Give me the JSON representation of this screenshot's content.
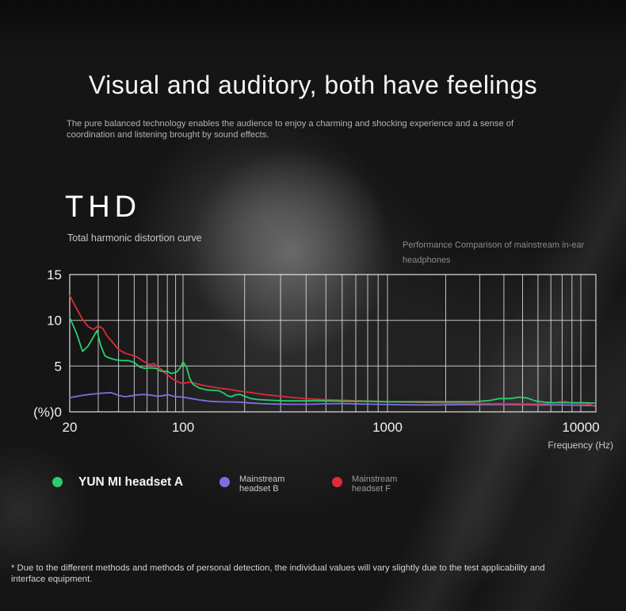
{
  "page": {
    "title": "Visual and auditory, both have feelings",
    "subtitle": "The pure balanced technology enables the audience to enjoy a charming and shocking experience and a sense of coordination and listening brought by sound effects.",
    "footnote": "* Due to the different methods and methods of personal detection, the individual values will vary slightly due to the test applicability and interface equipment."
  },
  "section": {
    "heading": "THD",
    "subheading": "Total harmonic distortion curve",
    "side_note": "Performance Comparison of mainstream in-ear headphones"
  },
  "chart_data": {
    "type": "line",
    "title": "THD",
    "subtitle": "Total harmonic distortion curve",
    "x_scale": "log",
    "x_domain": [
      20,
      12000
    ],
    "xlabel": "Frequency (Hz)",
    "y_unit": "%",
    "ylim": [
      0,
      15
    ],
    "grid": true,
    "grid_x": [
      20,
      30,
      40,
      50,
      60,
      70,
      80,
      90,
      100,
      200,
      300,
      400,
      500,
      600,
      700,
      800,
      900,
      1000,
      2000,
      3000,
      4000,
      5000,
      6000,
      7000,
      8000,
      9000,
      10000
    ],
    "grid_y": [
      0,
      5,
      10,
      15
    ],
    "x_ticks": [
      {
        "label": "20",
        "value": 20
      },
      {
        "label": "100",
        "value": 100
      },
      {
        "label": "1000",
        "value": 1000
      },
      {
        "label": "10000",
        "value": 10000
      }
    ],
    "y_ticks": [
      {
        "label": "15",
        "value": 15
      },
      {
        "label": "10",
        "value": 10
      },
      {
        "label": "5",
        "value": 5
      },
      {
        "label": "(%)0",
        "value": 0
      }
    ],
    "series": [
      {
        "name": "Mainstream headset B",
        "color": "#7d6fe2",
        "points": [
          [
            20,
            1.55
          ],
          [
            24,
            1.8
          ],
          [
            28,
            1.95
          ],
          [
            32,
            2.05
          ],
          [
            36,
            2.1
          ],
          [
            40,
            1.8
          ],
          [
            44,
            1.65
          ],
          [
            48,
            1.75
          ],
          [
            52,
            1.85
          ],
          [
            57,
            1.9
          ],
          [
            62,
            1.85
          ],
          [
            67,
            1.75
          ],
          [
            72,
            1.72
          ],
          [
            77,
            1.8
          ],
          [
            82,
            1.85
          ],
          [
            87,
            1.7
          ],
          [
            93,
            1.65
          ],
          [
            100,
            1.6
          ],
          [
            110,
            1.45
          ],
          [
            120,
            1.3
          ],
          [
            135,
            1.15
          ],
          [
            150,
            1.1
          ],
          [
            170,
            1.08
          ],
          [
            190,
            1.05
          ],
          [
            210,
            0.98
          ],
          [
            240,
            0.9
          ],
          [
            280,
            0.85
          ],
          [
            330,
            0.82
          ],
          [
            400,
            0.82
          ],
          [
            500,
            0.88
          ],
          [
            600,
            0.9
          ],
          [
            750,
            0.85
          ],
          [
            900,
            0.82
          ],
          [
            1100,
            0.78
          ],
          [
            1400,
            0.75
          ],
          [
            1800,
            0.75
          ],
          [
            2300,
            0.78
          ],
          [
            3000,
            0.8
          ],
          [
            4000,
            0.8
          ],
          [
            5000,
            0.78
          ],
          [
            6500,
            0.75
          ],
          [
            8000,
            0.75
          ],
          [
            10000,
            0.7
          ],
          [
            11800,
            0.68
          ]
        ]
      },
      {
        "name": "Mainstream headset F",
        "color": "#de2b35",
        "points": [
          [
            20,
            12.7
          ],
          [
            22,
            11.3
          ],
          [
            24,
            10.1
          ],
          [
            26,
            9.3
          ],
          [
            28,
            9.0
          ],
          [
            30,
            9.4
          ],
          [
            32,
            9.1
          ],
          [
            34,
            8.3
          ],
          [
            36,
            7.8
          ],
          [
            40,
            6.8
          ],
          [
            44,
            6.4
          ],
          [
            48,
            6.2
          ],
          [
            52,
            6.0
          ],
          [
            56,
            5.6
          ],
          [
            60,
            5.3
          ],
          [
            63,
            5.15
          ],
          [
            66,
            5.3
          ],
          [
            70,
            4.9
          ],
          [
            74,
            4.6
          ],
          [
            78,
            4.2
          ],
          [
            82,
            3.9
          ],
          [
            86,
            3.6
          ],
          [
            90,
            3.4
          ],
          [
            95,
            3.2
          ],
          [
            100,
            3.1
          ],
          [
            108,
            3.25
          ],
          [
            115,
            3.1
          ],
          [
            125,
            2.9
          ],
          [
            140,
            2.7
          ],
          [
            155,
            2.55
          ],
          [
            170,
            2.45
          ],
          [
            185,
            2.3
          ],
          [
            200,
            2.2
          ],
          [
            230,
            2.0
          ],
          [
            260,
            1.85
          ],
          [
            300,
            1.7
          ],
          [
            350,
            1.55
          ],
          [
            400,
            1.45
          ],
          [
            470,
            1.35
          ],
          [
            550,
            1.3
          ],
          [
            650,
            1.25
          ],
          [
            800,
            1.18
          ],
          [
            1000,
            1.1
          ],
          [
            1300,
            1.05
          ],
          [
            1700,
            1.0
          ],
          [
            2200,
            0.95
          ],
          [
            2800,
            0.92
          ],
          [
            3500,
            0.9
          ],
          [
            4500,
            0.88
          ],
          [
            5500,
            0.86
          ],
          [
            6500,
            0.88
          ],
          [
            7200,
            0.95
          ],
          [
            7800,
            1.1
          ],
          [
            8300,
            1.12
          ],
          [
            8800,
            1.0
          ],
          [
            9500,
            0.92
          ],
          [
            10500,
            0.9
          ],
          [
            11200,
            0.8
          ],
          [
            11800,
            0.6
          ]
        ]
      },
      {
        "name": "YUN MI headset A",
        "color": "#2bcd6e",
        "points": [
          [
            20,
            10.3
          ],
          [
            22,
            8.6
          ],
          [
            24,
            6.6
          ],
          [
            26,
            7.2
          ],
          [
            28,
            8.2
          ],
          [
            29.5,
            8.9
          ],
          [
            31,
            7.3
          ],
          [
            33,
            6.1
          ],
          [
            35,
            5.9
          ],
          [
            38,
            5.7
          ],
          [
            42,
            5.6
          ],
          [
            46,
            5.6
          ],
          [
            50,
            5.4
          ],
          [
            54,
            4.9
          ],
          [
            58,
            4.75
          ],
          [
            63,
            4.8
          ],
          [
            68,
            4.75
          ],
          [
            72,
            4.5
          ],
          [
            76,
            4.4
          ],
          [
            80,
            4.45
          ],
          [
            84,
            4.2
          ],
          [
            88,
            4.25
          ],
          [
            92,
            4.4
          ],
          [
            96,
            4.8
          ],
          [
            100,
            5.45
          ],
          [
            104,
            4.9
          ],
          [
            108,
            3.6
          ],
          [
            112,
            3.0
          ],
          [
            120,
            2.6
          ],
          [
            130,
            2.4
          ],
          [
            140,
            2.35
          ],
          [
            150,
            2.3
          ],
          [
            158,
            2.05
          ],
          [
            165,
            1.75
          ],
          [
            172,
            1.65
          ],
          [
            180,
            1.85
          ],
          [
            190,
            1.9
          ],
          [
            200,
            1.7
          ],
          [
            215,
            1.45
          ],
          [
            230,
            1.35
          ],
          [
            250,
            1.3
          ],
          [
            280,
            1.25
          ],
          [
            320,
            1.2
          ],
          [
            400,
            1.2
          ],
          [
            500,
            1.2
          ],
          [
            650,
            1.15
          ],
          [
            800,
            1.15
          ],
          [
            1000,
            1.1
          ],
          [
            1300,
            1.1
          ],
          [
            1700,
            1.1
          ],
          [
            2200,
            1.1
          ],
          [
            2800,
            1.1
          ],
          [
            3400,
            1.25
          ],
          [
            3800,
            1.45
          ],
          [
            4300,
            1.45
          ],
          [
            4800,
            1.6
          ],
          [
            5300,
            1.5
          ],
          [
            5800,
            1.2
          ],
          [
            6500,
            1.05
          ],
          [
            7500,
            1.0
          ],
          [
            9000,
            1.0
          ],
          [
            10500,
            1.0
          ],
          [
            11800,
            0.95
          ]
        ]
      }
    ]
  },
  "legend": {
    "items": [
      {
        "label_lines": [
          "YUN MI headset A"
        ],
        "color": "#2bcd6e",
        "emphasis": true
      },
      {
        "label_lines": [
          "Mainstream",
          "headset B"
        ],
        "color": "#7d6fe2",
        "emphasis": false
      },
      {
        "label_lines": [
          "Mainstream",
          "headset F"
        ],
        "color": "#de2b35",
        "emphasis": false
      }
    ]
  },
  "colors": {
    "background": "#151515",
    "grid_line": "#e8e8e8",
    "tick_text": "#f0f0f0"
  }
}
